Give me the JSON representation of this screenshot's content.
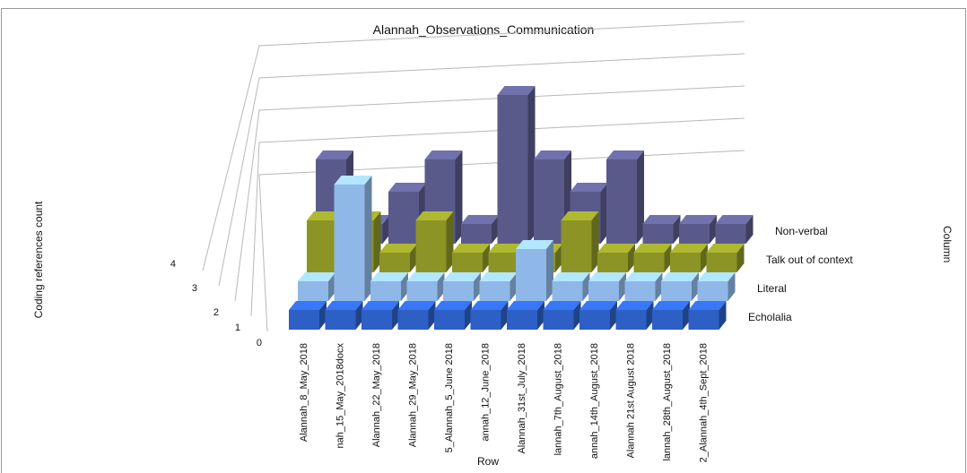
{
  "chart_data": {
    "type": "bar",
    "variant": "3d-column",
    "title": "Alannah_Observations_Communication",
    "ylabel": "Coding references count",
    "row_axis_label": "Row",
    "column_axis_label": "Column",
    "ylim": [
      0,
      4
    ],
    "yticks": [
      "0",
      "1",
      "2",
      "3",
      "4"
    ],
    "grid": true,
    "legend": "right",
    "categories": [
      "Alannah_8_May_2018",
      "nah_15_May_2018docx",
      "Alannah_22_May_2018",
      "Alannah_29_May_2018",
      "5_Alannah_5_June 2018",
      "annah_12_June_2018",
      "Alannah_31st_July_2018",
      "lannah_7th_August_2018",
      "annah_14th_August_2018",
      "Alannah 21st August 2018",
      "lannah_28th_August_2018",
      "2_Alannah_4th_Sept_2018"
    ],
    "series": [
      {
        "name": "Echolalia",
        "color": "#2d5fc4",
        "values": [
          0,
          0,
          0,
          0,
          0,
          0,
          0,
          0,
          0,
          0,
          0,
          0
        ]
      },
      {
        "name": "Literal",
        "color": "#8fb8e8",
        "values": [
          0,
          3,
          0,
          0,
          0,
          0,
          1,
          0,
          0,
          0,
          0,
          0
        ]
      },
      {
        "name": "Talk out of context",
        "color": "#8c9426",
        "values": [
          1,
          1,
          0,
          1,
          0,
          0,
          0,
          1,
          0,
          0,
          0,
          0
        ]
      },
      {
        "name": "Non-verbal",
        "color": "#5a5a8a",
        "values": [
          2,
          0,
          1,
          2,
          0,
          4,
          2,
          1,
          2,
          0,
          0,
          0
        ]
      }
    ]
  }
}
